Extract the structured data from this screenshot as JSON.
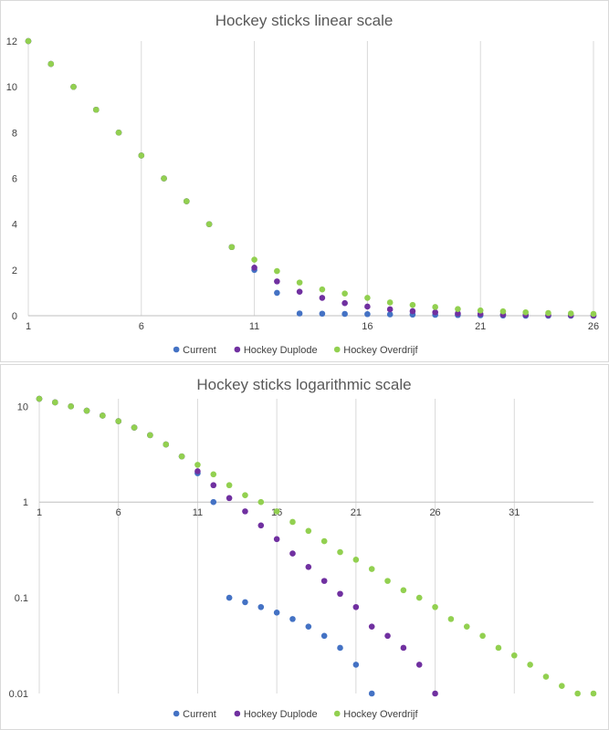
{
  "chart_data": [
    {
      "type": "scatter",
      "title": "Hockey sticks linear scale",
      "xlabel": "",
      "ylabel": "",
      "xlim": [
        1,
        26
      ],
      "ylim": [
        0,
        12
      ],
      "yscale": "linear",
      "x_ticks": [
        "1",
        "6",
        "11",
        "16",
        "21",
        "26"
      ],
      "y_ticks": [
        "0",
        "2",
        "4",
        "6",
        "8",
        "10",
        "12"
      ],
      "grid": "vertical",
      "legend": "bottom",
      "colors": {
        "Current": "#4472c4",
        "Hockey Duplode": "#7030a0",
        "Hockey Overdrijf": "#92d050"
      },
      "series": [
        {
          "name": "Current",
          "x": [
            1,
            2,
            3,
            4,
            5,
            6,
            7,
            8,
            9,
            10,
            11,
            12,
            13,
            14,
            15,
            16,
            17,
            18,
            19,
            20,
            21,
            22,
            23,
            24,
            25,
            26
          ],
          "y": [
            12,
            11,
            10,
            9,
            8,
            7,
            6,
            5,
            4,
            3,
            2,
            1,
            0.1,
            0.09,
            0.08,
            0.07,
            0.06,
            0.05,
            0.04,
            0.03,
            0.02,
            0.01,
            0,
            0,
            0,
            0
          ]
        },
        {
          "name": "Hockey Duplode",
          "x": [
            1,
            2,
            3,
            4,
            5,
            6,
            7,
            8,
            9,
            10,
            11,
            12,
            13,
            14,
            15,
            16,
            17,
            18,
            19,
            20,
            21,
            22,
            23,
            24,
            25,
            26
          ],
          "y": [
            12,
            11,
            10,
            9,
            8,
            7,
            6,
            5,
            4,
            3,
            2.1,
            1.5,
            1.05,
            0.78,
            0.55,
            0.4,
            0.28,
            0.2,
            0.15,
            0.1,
            0.08,
            0.05,
            0.04,
            0.03,
            0.02,
            0.01
          ]
        },
        {
          "name": "Hockey Overdrijf",
          "x": [
            1,
            2,
            3,
            4,
            5,
            6,
            7,
            8,
            9,
            10,
            11,
            12,
            13,
            14,
            15,
            16,
            17,
            18,
            19,
            20,
            21,
            22,
            23,
            24,
            25,
            26
          ],
          "y": [
            12,
            11,
            10,
            9,
            8,
            7,
            6,
            5,
            4,
            3,
            2.45,
            1.95,
            1.45,
            1.15,
            0.97,
            0.78,
            0.58,
            0.47,
            0.38,
            0.29,
            0.23,
            0.19,
            0.15,
            0.12,
            0.1,
            0.08
          ]
        }
      ]
    },
    {
      "type": "scatter",
      "title": "Hockey sticks logarithmic scale",
      "xlabel": "",
      "ylabel": "",
      "xlim": [
        1,
        36
      ],
      "ylim": [
        0.01,
        12
      ],
      "yscale": "log",
      "x_ticks": [
        "1",
        "6",
        "11",
        "16",
        "21",
        "26",
        "31"
      ],
      "y_ticks": [
        "0.01",
        "0.1",
        "1",
        "10"
      ],
      "grid": "vertical",
      "legend": "bottom",
      "colors": {
        "Current": "#4472c4",
        "Hockey Duplode": "#7030a0",
        "Hockey Overdrijf": "#92d050"
      },
      "series": [
        {
          "name": "Current",
          "x": [
            1,
            2,
            3,
            4,
            5,
            6,
            7,
            8,
            9,
            10,
            11,
            12,
            13,
            14,
            15,
            16,
            17,
            18,
            19,
            20,
            21,
            22
          ],
          "y": [
            12,
            11,
            10,
            9,
            8,
            7,
            6,
            5,
            4,
            3,
            2,
            1,
            0.1,
            0.09,
            0.08,
            0.07,
            0.06,
            0.05,
            0.04,
            0.03,
            0.02,
            0.01
          ]
        },
        {
          "name": "Hockey Duplode",
          "x": [
            1,
            2,
            3,
            4,
            5,
            6,
            7,
            8,
            9,
            10,
            11,
            12,
            13,
            14,
            15,
            16,
            17,
            18,
            19,
            20,
            21,
            22,
            23,
            24,
            25,
            26
          ],
          "y": [
            12,
            11,
            10,
            9,
            8,
            7,
            6,
            5,
            4,
            3,
            2.1,
            1.5,
            1.1,
            0.8,
            0.57,
            0.41,
            0.29,
            0.21,
            0.15,
            0.11,
            0.08,
            0.05,
            0.04,
            0.03,
            0.02,
            0.01
          ]
        },
        {
          "name": "Hockey Overdrijf",
          "x": [
            1,
            2,
            3,
            4,
            5,
            6,
            7,
            8,
            9,
            10,
            11,
            12,
            13,
            14,
            15,
            16,
            17,
            18,
            19,
            20,
            21,
            22,
            23,
            24,
            25,
            26,
            27,
            28,
            29,
            30,
            31,
            32,
            33,
            34,
            35,
            36
          ],
          "y": [
            12,
            11,
            10,
            9,
            8,
            7,
            6,
            5,
            4,
            3,
            2.45,
            1.95,
            1.5,
            1.18,
            1,
            0.8,
            0.62,
            0.5,
            0.39,
            0.3,
            0.25,
            0.2,
            0.15,
            0.12,
            0.1,
            0.08,
            0.06,
            0.05,
            0.04,
            0.03,
            0.025,
            0.02,
            0.015,
            0.012,
            0.01,
            0.01
          ]
        }
      ]
    }
  ]
}
